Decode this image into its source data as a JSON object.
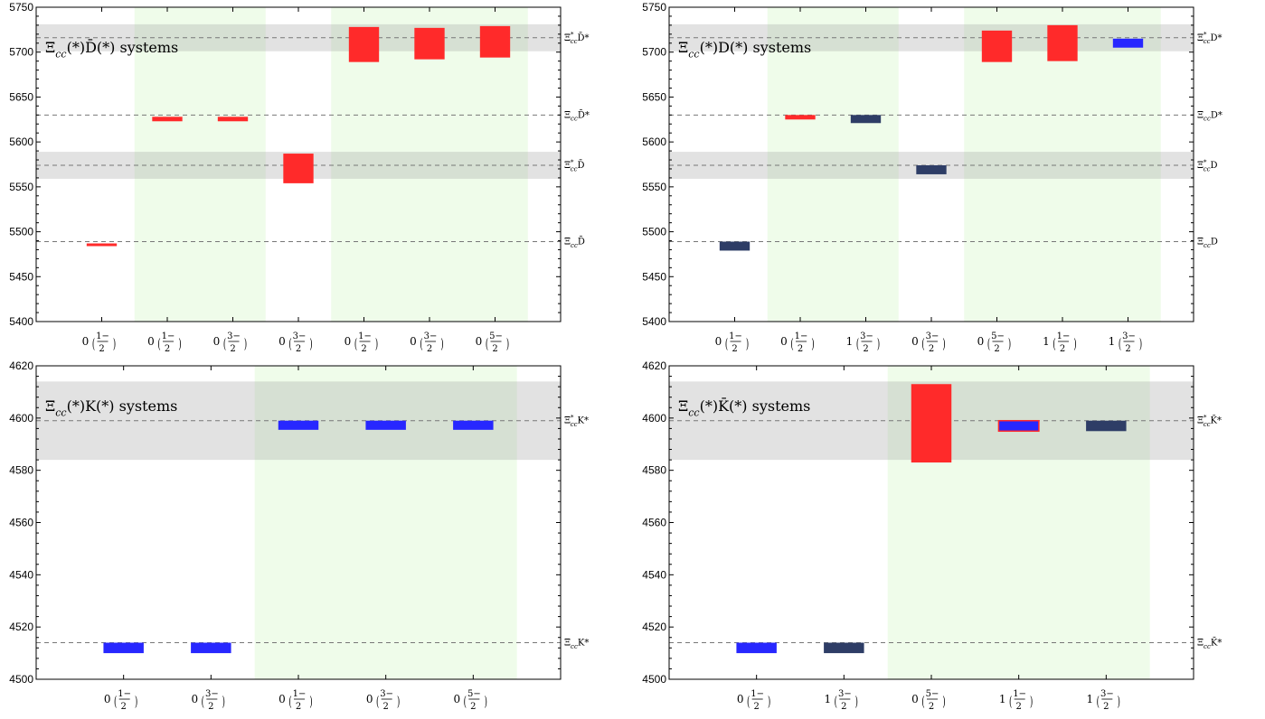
{
  "chart_data": [
    {
      "type": "bar",
      "title": "Ξcc(*)D̄(*) systems",
      "ylim": [
        5400,
        5750
      ],
      "yticks": [
        5400,
        5450,
        5500,
        5550,
        5600,
        5650,
        5700,
        5750
      ],
      "categories": [
        {
          "I": "0",
          "jp": "1/2−"
        },
        {
          "I": "0",
          "jp": "1/2−"
        },
        {
          "I": "0",
          "jp": "3/2−"
        },
        {
          "I": "0",
          "jp": "3/2−"
        },
        {
          "I": "0",
          "jp": "1/2−"
        },
        {
          "I": "0",
          "jp": "3/2−"
        },
        {
          "I": "0",
          "jp": "5/2−"
        }
      ],
      "green_bands": [
        [
          1,
          2
        ],
        [
          4,
          6
        ]
      ],
      "thresholds": [
        {
          "label": "ΞccD̄",
          "value": 5489
        },
        {
          "label": "Ξ*ccD̄",
          "value": 5574,
          "band": [
            5559,
            5589
          ]
        },
        {
          "label": "ΞccD̄*",
          "value": 5630
        },
        {
          "label": "Ξ*ccD̄*",
          "value": 5716,
          "band": [
            5701,
            5731
          ]
        }
      ],
      "bars": [
        {
          "cat": 0,
          "low": 5484,
          "high": 5487,
          "color": "#ff2a2a"
        },
        {
          "cat": 1,
          "low": 5623,
          "high": 5628,
          "color": "#ff2a2a"
        },
        {
          "cat": 2,
          "low": 5623,
          "high": 5628,
          "color": "#ff2a2a"
        },
        {
          "cat": 3,
          "low": 5554,
          "high": 5587,
          "color": "#ff2a2a"
        },
        {
          "cat": 4,
          "low": 5689,
          "high": 5728,
          "color": "#ff2a2a"
        },
        {
          "cat": 5,
          "low": 5692,
          "high": 5727,
          "color": "#ff2a2a"
        },
        {
          "cat": 6,
          "low": 5694,
          "high": 5729,
          "color": "#ff2a2a"
        }
      ]
    },
    {
      "type": "bar",
      "title": "Ξcc(*)D(*) systems",
      "ylim": [
        5400,
        5750
      ],
      "yticks": [
        5400,
        5450,
        5500,
        5550,
        5600,
        5650,
        5700,
        5750
      ],
      "categories": [
        {
          "I": "0",
          "jp": "1/2−"
        },
        {
          "I": "0",
          "jp": "1/2−"
        },
        {
          "I": "1",
          "jp": "3/2−"
        },
        {
          "I": "0",
          "jp": "3/2−"
        },
        {
          "I": "0",
          "jp": "5/2−"
        },
        {
          "I": "1",
          "jp": "1/2−"
        },
        {
          "I": "1",
          "jp": "3/2−"
        }
      ],
      "green_bands": [
        [
          1,
          2
        ],
        [
          4,
          6
        ]
      ],
      "thresholds": [
        {
          "label": "ΞccD",
          "value": 5489
        },
        {
          "label": "Ξ*ccD",
          "value": 5574,
          "band": [
            5559,
            5589
          ]
        },
        {
          "label": "ΞccD*",
          "value": 5630
        },
        {
          "label": "Ξ*ccD*",
          "value": 5716,
          "band": [
            5701,
            5731
          ]
        }
      ],
      "bars": [
        {
          "cat": 0,
          "low": 5479,
          "high": 5489,
          "color": "#2e3d66"
        },
        {
          "cat": 1,
          "low": 5625,
          "high": 5630,
          "color": "#ff2a2a"
        },
        {
          "cat": 2,
          "low": 5621,
          "high": 5630,
          "color": "#2e3d66"
        },
        {
          "cat": 3,
          "low": 5564,
          "high": 5574,
          "color": "#2e3d66"
        },
        {
          "cat": 4,
          "low": 5689,
          "high": 5724,
          "color": "#ff2a2a"
        },
        {
          "cat": 5,
          "low": 5690,
          "high": 5730,
          "color": "#ff2a2a"
        },
        {
          "cat": 6,
          "low": 5705,
          "high": 5715,
          "color": "#2727ff"
        }
      ]
    },
    {
      "type": "bar",
      "title": "Ξcc(*)K(*) systems",
      "ylim": [
        4500,
        4620
      ],
      "yticks": [
        4500,
        4520,
        4540,
        4560,
        4580,
        4600,
        4620
      ],
      "categories": [
        {
          "I": "0",
          "jp": "1/2−"
        },
        {
          "I": "0",
          "jp": "3/2−"
        },
        {
          "I": "0",
          "jp": "1/2−"
        },
        {
          "I": "0",
          "jp": "3/2−"
        },
        {
          "I": "0",
          "jp": "5/2−"
        }
      ],
      "green_bands": [
        [
          2,
          4
        ]
      ],
      "thresholds": [
        {
          "label": "ΞccK*",
          "value": 4514
        },
        {
          "label": "Ξ*ccK*",
          "value": 4599,
          "band": [
            4584,
            4614
          ]
        }
      ],
      "bars": [
        {
          "cat": 0,
          "low": 4510,
          "high": 4514,
          "color": "#2727ff"
        },
        {
          "cat": 1,
          "low": 4510,
          "high": 4514,
          "color": "#2727ff"
        },
        {
          "cat": 2,
          "low": 4595.5,
          "high": 4599,
          "color": "#2727ff"
        },
        {
          "cat": 3,
          "low": 4595.5,
          "high": 4599,
          "color": "#2727ff"
        },
        {
          "cat": 4,
          "low": 4595.5,
          "high": 4599,
          "color": "#2727ff"
        }
      ]
    },
    {
      "type": "bar",
      "title": "Ξcc(*)K̄(*) systems",
      "ylim": [
        4500,
        4620
      ],
      "yticks": [
        4500,
        4520,
        4540,
        4560,
        4580,
        4600,
        4620
      ],
      "categories": [
        {
          "I": "0",
          "jp": "1/2−"
        },
        {
          "I": "1",
          "jp": "3/2−"
        },
        {
          "I": "0",
          "jp": "5/2−"
        },
        {
          "I": "1",
          "jp": "1/2−"
        },
        {
          "I": "1",
          "jp": "3/2−"
        }
      ],
      "green_bands": [
        [
          2,
          4
        ]
      ],
      "thresholds": [
        {
          "label": "ΞccK̄*",
          "value": 4514
        },
        {
          "label": "Ξ*ccK̄*",
          "value": 4599,
          "band": [
            4584,
            4614
          ]
        }
      ],
      "bars": [
        {
          "cat": 0,
          "low": 4510,
          "high": 4514,
          "color": "#2727ff"
        },
        {
          "cat": 1,
          "low": 4510,
          "high": 4514,
          "color": "#2e3d66"
        },
        {
          "cat": 2,
          "low": 4583,
          "high": 4613,
          "color": "#ff2a2a"
        },
        {
          "cat": 3,
          "low": 4595,
          "high": 4599,
          "color": "#2727ff",
          "outline": "#ff2a2a"
        },
        {
          "cat": 4,
          "low": 4595,
          "high": 4599,
          "color": "#2e3d66"
        }
      ]
    }
  ]
}
